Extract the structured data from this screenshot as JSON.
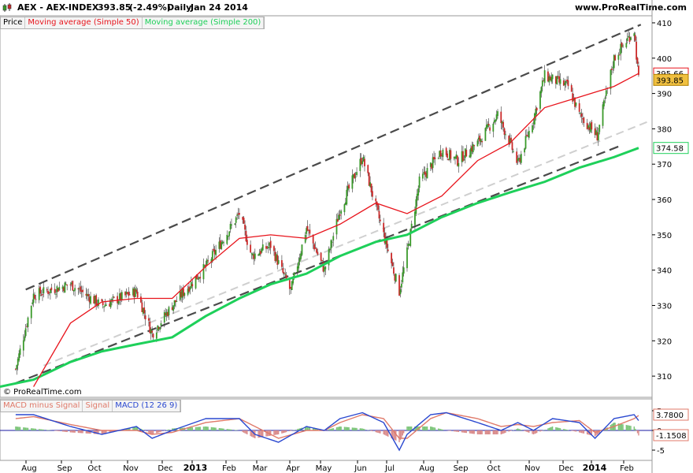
{
  "header": {
    "symbol": "AEX - AEX-INDEX",
    "last": "393.85",
    "change_pct": "(-2.49%)",
    "period": "Daily",
    "date": "Jan 24 2014",
    "site": "www.ProRealTime.com"
  },
  "legend_main": [
    "Price",
    "Moving average (Simple 50)",
    "Moving average (Simple 200)"
  ],
  "legend_macd": [
    "MACD minus Signal",
    "Signal",
    "MACD (12 26 9)"
  ],
  "copyright": "© ProRealTime.com",
  "colors": {
    "candle_up": "#3a9a2a",
    "candle_down": "#cc2a2a",
    "ma50": "#e8141c",
    "ma200": "#1ed05a",
    "trend_black": "#4a4a4a",
    "trend_grey": "#cfcfcf",
    "macd": "#2a48d0",
    "signal": "#e07a6a",
    "hist_pos": "#7cc47a",
    "hist_neg": "#d98a8a",
    "price_box": "#f0c040"
  },
  "chart_data": [
    {
      "type": "candlestick",
      "title": "AEX - AEX-INDEX",
      "ylim": [
        304,
        412
      ],
      "y_ticks": [
        310,
        320,
        330,
        340,
        350,
        360,
        370,
        380,
        390,
        400,
        410
      ],
      "x_ticks": [
        "Aug",
        "Sep",
        "Oct",
        "Nov",
        "Dec",
        "2013",
        "Feb",
        "Mar",
        "Apr",
        "May",
        "Jun",
        "Jul",
        "Aug",
        "Sep",
        "Oct",
        "Nov",
        "Dec",
        "2014",
        "Feb"
      ],
      "x": [
        "2012-07-16",
        "2012-08-01",
        "2012-09-03",
        "2012-10-01",
        "2012-11-01",
        "2012-11-15",
        "2012-12-03",
        "2013-01-02",
        "2013-02-01",
        "2013-02-12",
        "2013-03-01",
        "2013-03-19",
        "2013-04-02",
        "2013-04-18",
        "2013-05-02",
        "2013-05-22",
        "2013-06-03",
        "2013-06-24",
        "2013-07-01",
        "2013-07-12",
        "2013-08-01",
        "2013-08-15",
        "2013-09-02",
        "2013-09-20",
        "2013-10-01",
        "2013-10-08",
        "2013-10-22",
        "2013-11-01",
        "2013-11-22",
        "2013-12-02",
        "2013-12-18",
        "2014-01-02",
        "2014-01-20",
        "2014-01-24"
      ],
      "close": [
        312,
        333,
        336,
        330,
        334,
        322,
        330,
        341,
        356,
        344,
        347,
        334,
        352,
        340,
        357,
        372,
        358,
        334,
        345,
        365,
        374,
        371,
        376,
        384,
        376,
        370,
        383,
        395,
        392,
        384,
        378,
        400,
        408,
        393.85
      ],
      "series": [
        {
          "name": "Moving average (Simple 50)",
          "last": "395.66",
          "x": [
            "2012-08-01",
            "2012-09-03",
            "2012-10-01",
            "2012-11-01",
            "2012-12-03",
            "2013-01-02",
            "2013-02-01",
            "2013-03-01",
            "2013-04-02",
            "2013-05-02",
            "2013-06-03",
            "2013-07-01",
            "2013-08-01",
            "2013-09-02",
            "2013-10-01",
            "2013-11-01",
            "2013-12-02",
            "2014-01-02",
            "2014-01-24"
          ],
          "values": [
            307,
            325,
            331,
            332,
            332,
            341,
            349,
            350,
            349,
            353,
            359,
            356,
            361,
            371,
            376,
            386,
            389,
            392,
            395.66
          ]
        },
        {
          "name": "Moving average (Simple 200)",
          "last": "374.58",
          "x": [
            "2012-07-02",
            "2012-08-01",
            "2012-09-03",
            "2012-10-01",
            "2012-11-01",
            "2012-12-03",
            "2013-01-02",
            "2013-02-01",
            "2013-03-01",
            "2013-04-02",
            "2013-05-02",
            "2013-06-03",
            "2013-07-01",
            "2013-08-01",
            "2013-09-02",
            "2013-10-01",
            "2013-11-01",
            "2013-12-02",
            "2014-01-02",
            "2014-01-24"
          ],
          "values": [
            307,
            309,
            314,
            317,
            319,
            321,
            327,
            332,
            336,
            339,
            344,
            348,
            350,
            355,
            359,
            362,
            365,
            369,
            372,
            374.58
          ]
        }
      ],
      "price_labels": [
        "395.66",
        "393.85",
        "374.58"
      ]
    },
    {
      "type": "macd",
      "title": "MACD (12 26 9)",
      "ylim": [
        -6,
        7
      ],
      "y_ticks": [
        5,
        0,
        -5
      ],
      "x": [
        "2012-07-16",
        "2012-08-01",
        "2012-09-03",
        "2012-10-01",
        "2012-11-01",
        "2012-11-15",
        "2012-12-03",
        "2013-01-02",
        "2013-02-01",
        "2013-02-15",
        "2013-03-08",
        "2013-04-02",
        "2013-04-18",
        "2013-05-02",
        "2013-05-22",
        "2013-06-10",
        "2013-06-24",
        "2013-07-01",
        "2013-07-22",
        "2013-08-05",
        "2013-09-02",
        "2013-09-23",
        "2013-10-08",
        "2013-10-22",
        "2013-11-08",
        "2013-12-02",
        "2013-12-16",
        "2014-01-02",
        "2014-01-20",
        "2014-01-24"
      ],
      "macd": [
        4,
        4,
        1,
        -1,
        1,
        -2,
        0,
        3,
        3,
        -1,
        -3,
        1,
        0,
        3,
        4.5,
        2,
        -5,
        -1,
        4,
        4.5,
        2,
        0,
        2,
        0,
        3,
        2,
        -2,
        3,
        4,
        2.5
      ],
      "signal": [
        3,
        3.5,
        1.5,
        0,
        0,
        -1,
        -0.5,
        2,
        3,
        1,
        -2,
        0,
        0,
        2,
        4,
        3,
        -2,
        -2,
        3,
        4.5,
        3,
        1,
        1.5,
        1,
        2,
        2.5,
        -0.5,
        1,
        3,
        3.78
      ],
      "histogram": [
        1,
        0.5,
        -0.5,
        -1,
        1,
        -1,
        0.5,
        1,
        0,
        -2,
        -1,
        1,
        0,
        1,
        0.5,
        -1,
        -3,
        1,
        1,
        0,
        -1,
        -1,
        0.5,
        -1,
        1,
        -0.5,
        -1.5,
        2,
        1,
        -1.1508
      ],
      "value_labels": [
        "3.7800",
        "-1.1508"
      ]
    }
  ]
}
